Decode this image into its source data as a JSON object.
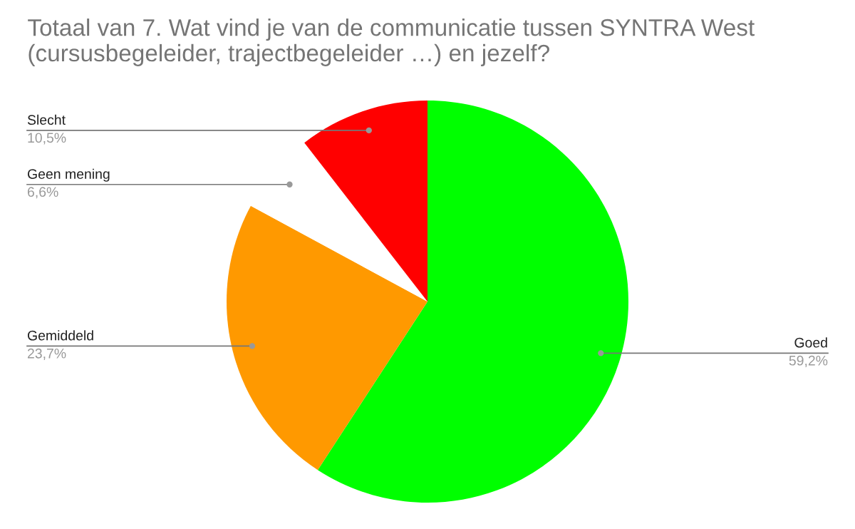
{
  "chart_data": {
    "type": "pie",
    "title": "Totaal van 7. Wat vind je van de communicatie tussen SYNTRA West (cursusbegeleider, trajectbegeleider …) en jezelf?",
    "categories": [
      "Goed",
      "Gemiddeld",
      "Geen mening",
      "Slecht"
    ],
    "values": [
      59.2,
      23.7,
      6.6,
      10.5
    ],
    "colors": [
      "#00ff00",
      "#ff9900",
      "#ffffff",
      "#ff0000"
    ],
    "value_labels": [
      "59,2%",
      "23,7%",
      "6,6%",
      "10,5%"
    ],
    "legend": false
  }
}
